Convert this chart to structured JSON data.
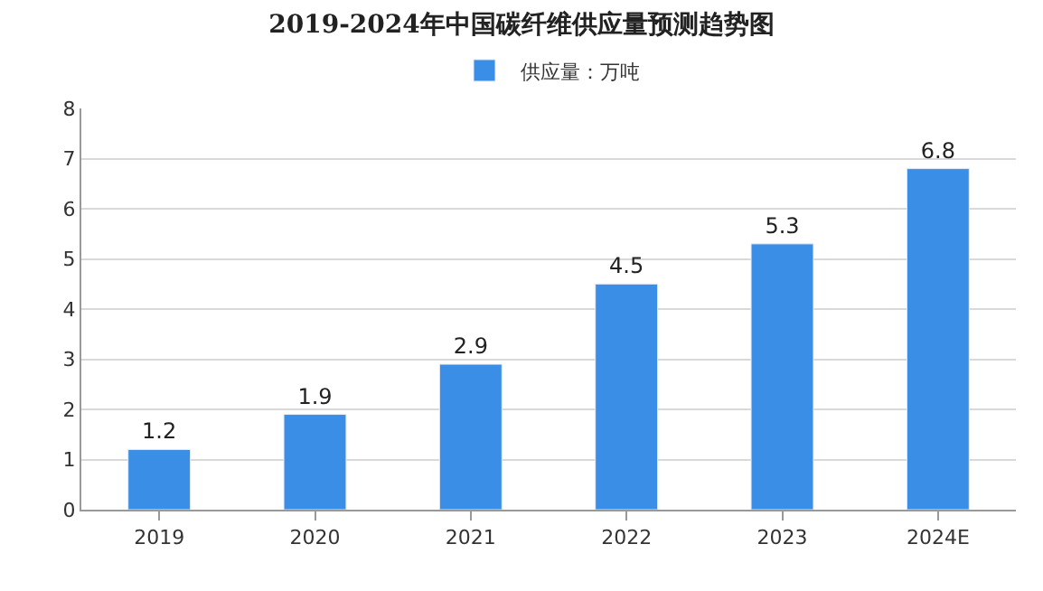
{
  "chart_data": {
    "type": "bar",
    "title": "2019-2024年中国碳纤维供应量预测趋势图",
    "categories": [
      "2019",
      "2020",
      "2021",
      "2022",
      "2023",
      "2024E"
    ],
    "series": [
      {
        "name": "供应量：万吨",
        "color": "#3a8ee6",
        "values": [
          1.2,
          1.9,
          2.9,
          4.5,
          5.3,
          6.8
        ]
      }
    ],
    "ylim": [
      0,
      8
    ],
    "yticks": [
      0,
      1,
      2,
      3,
      4,
      5,
      6,
      7,
      8
    ],
    "grid": "y",
    "legend": "top",
    "data_labels": true
  }
}
